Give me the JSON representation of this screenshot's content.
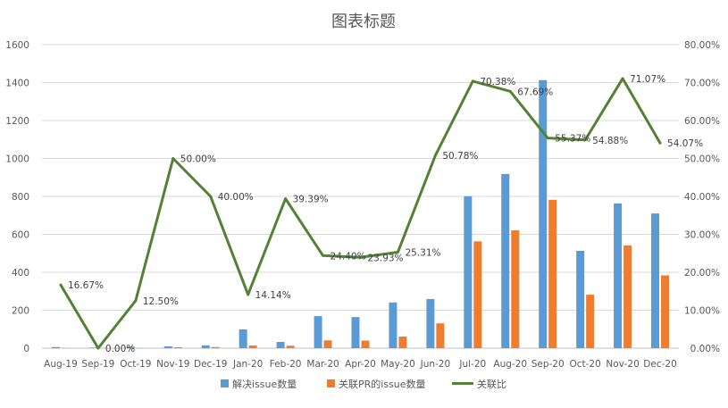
{
  "chart_data": {
    "type": "bar",
    "title": "图表标题",
    "categories": [
      "Aug-19",
      "Sep-19",
      "Oct-19",
      "Nov-19",
      "Dec-19",
      "Jan-20",
      "Feb-20",
      "Mar-20",
      "Apr-20",
      "May-20",
      "Jun-20",
      "Jul-20",
      "Aug-20",
      "Sep-20",
      "Oct-20",
      "Nov-20",
      "Dec-20"
    ],
    "series": [
      {
        "name": "解决issue数量",
        "kind": "bar",
        "axis": "left",
        "color": "#5B9BD5",
        "values": [
          6,
          3,
          8,
          10,
          15,
          99,
          33,
          169,
          164,
          241,
          259,
          801,
          918,
          1413,
          513,
          763,
          710
        ]
      },
      {
        "name": "关联PR的issue数量",
        "kind": "bar",
        "axis": "left",
        "color": "#ED7D31",
        "values": [
          1,
          0,
          1,
          5,
          6,
          14,
          13,
          41,
          40,
          61,
          131,
          563,
          621,
          782,
          282,
          542,
          384
        ]
      },
      {
        "name": "关联比",
        "kind": "line",
        "axis": "right",
        "color": "#538135",
        "values": [
          16.67,
          0.0,
          12.5,
          50.0,
          40.0,
          14.14,
          39.39,
          24.4,
          23.93,
          25.31,
          50.78,
          70.38,
          67.69,
          55.37,
          54.88,
          71.07,
          54.07
        ],
        "labels": [
          "16.67%",
          "0.00%",
          "12.50%",
          "50.00%",
          "40.00%",
          "14.14%",
          "39.39%",
          "24.40%",
          "23.93%",
          "25.31%",
          "50.78%",
          "70.38%",
          "67.69%",
          "55.37%",
          "54.88%",
          "71.07%",
          "54.07%"
        ]
      }
    ],
    "left_axis": {
      "min": 0,
      "max": 1600,
      "ticks": [
        "0",
        "200",
        "400",
        "600",
        "800",
        "1000",
        "1200",
        "1400",
        "1600"
      ]
    },
    "right_axis": {
      "min": 0,
      "max": 80,
      "ticks": [
        "0.00%",
        "10.00%",
        "20.00%",
        "30.00%",
        "40.00%",
        "50.00%",
        "60.00%",
        "70.00%",
        "80.00%"
      ]
    },
    "grid": true,
    "legend_position": "bottom"
  }
}
